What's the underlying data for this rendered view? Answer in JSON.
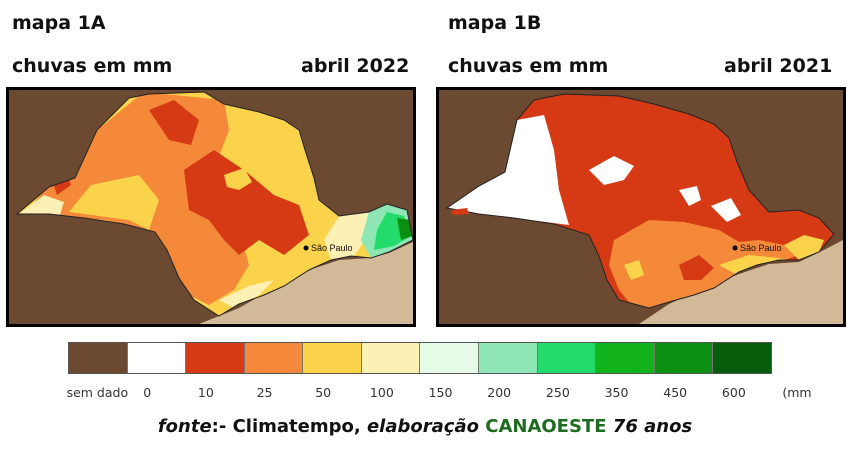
{
  "map_a": {
    "title": "mapa 1A",
    "subtitle": "chuvas em mm",
    "period": "abril 2022",
    "city_label": "São Paulo"
  },
  "map_b": {
    "title": "mapa 1B",
    "subtitle": "chuvas em mm",
    "period": "abril 2021",
    "city_label": "São Paulo"
  },
  "legend": [
    {
      "label": "sem dado",
      "color": "#6b4a31"
    },
    {
      "label": "0",
      "color": "#ffffff"
    },
    {
      "label": "10",
      "color": "#d63a14"
    },
    {
      "label": "25",
      "color": "#f5893a"
    },
    {
      "label": "50",
      "color": "#fbd34a"
    },
    {
      "label": "100",
      "color": "#fdf0b4"
    },
    {
      "label": "150",
      "color": "#e6fae8"
    },
    {
      "label": "200",
      "color": "#8ee6b5"
    },
    {
      "label": "250",
      "color": "#22db6a"
    },
    {
      "label": "350",
      "color": "#12b31a"
    },
    {
      "label": "450",
      "color": "#0a8f10"
    },
    {
      "label": "600",
      "color": "#075d0b"
    }
  ],
  "legend_unit": "(mm",
  "source": {
    "prefix": "fonte",
    "sep": ":- Climatempo, ",
    "elab": "elaboração",
    "brand": "CANAOESTE",
    "suffix": "76 anos"
  },
  "colors": {
    "land": "#6b4a31",
    "ocean": "#d2b997",
    "border": "#000000"
  }
}
